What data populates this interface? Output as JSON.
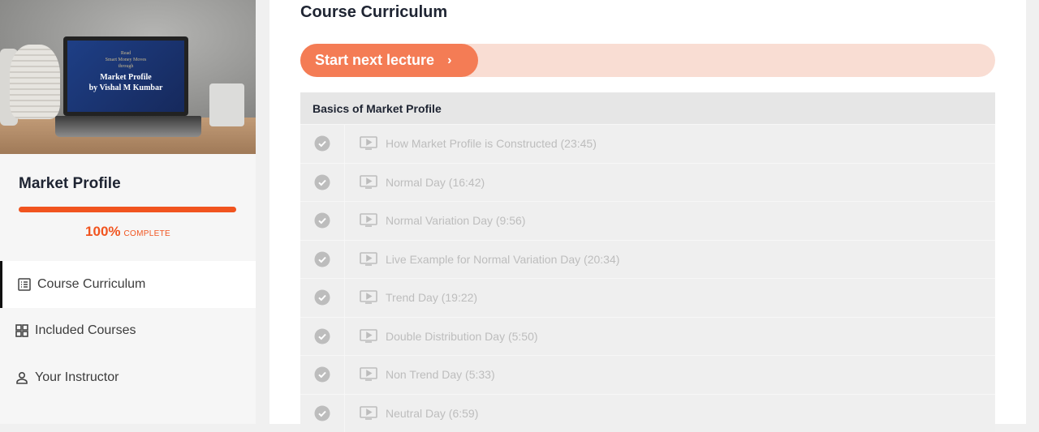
{
  "sidebar": {
    "hero_image": {
      "screen_lines": [
        "Read",
        "Smart Money Moves",
        "through"
      ],
      "screen_title_lines": [
        "Market Profile",
        "by Vishal M Kumbar"
      ]
    },
    "course_title": "Market Profile",
    "progress_percent": 100,
    "progress_label": "100%",
    "complete_label": "COMPLETE",
    "accent_color": "#f1541f",
    "nav": [
      {
        "label": "Course Curriculum",
        "icon": "list-icon",
        "active": true
      },
      {
        "label": "Included Courses",
        "icon": "grid-icon",
        "active": false
      },
      {
        "label": "Your Instructor",
        "icon": "person-icon",
        "active": false
      }
    ]
  },
  "main": {
    "title": "Course Curriculum",
    "start_button": {
      "label": "Start next lecture",
      "icon": "chevron-right-icon"
    },
    "section": {
      "title": "Basics of Market Profile",
      "lectures": [
        {
          "label": "How Market Profile is Constructed (23:45)",
          "completed": true
        },
        {
          "label": "Normal Day (16:42)",
          "completed": true
        },
        {
          "label": "Normal Variation Day (9:56)",
          "completed": true
        },
        {
          "label": "Live Example for Normal Variation Day (20:34)",
          "completed": true
        },
        {
          "label": "Trend Day (19:22)",
          "completed": true
        },
        {
          "label": "Double Distribution Day (5:50)",
          "completed": true
        },
        {
          "label": "Non Trend Day (5:33)",
          "completed": true
        },
        {
          "label": "Neutral Day (6:59)",
          "completed": true
        }
      ]
    }
  }
}
